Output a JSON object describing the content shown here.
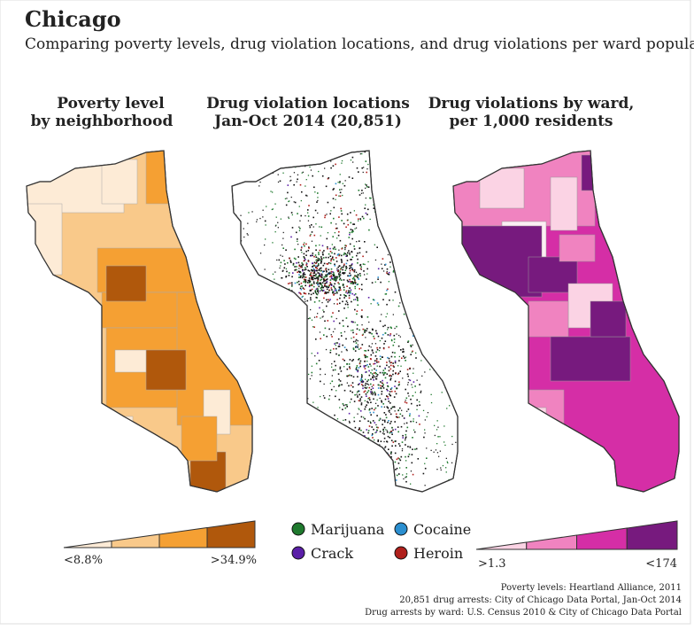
{
  "header": {
    "title": "Chicago",
    "subtitle": "Comparing poverty levels, drug violation locations, and drug violations per ward populations"
  },
  "panels": [
    {
      "title": [
        "Poverty level",
        "by neighborhood"
      ]
    },
    {
      "title": [
        "Drug violation locations",
        "Jan-Oct 2014 (20,851)"
      ]
    },
    {
      "title": [
        "Drug violations by ward,",
        "per 1,000 residents"
      ]
    }
  ],
  "poverty_legend": {
    "low": "<8.8%",
    "high": ">34.9%",
    "colors": [
      "#fdebd6",
      "#f9c98a",
      "#f5a033",
      "#b0580c"
    ]
  },
  "drug_legend": [
    {
      "name": "Marijuana",
      "color": "#1f7a2e"
    },
    {
      "name": "Cocaine",
      "color": "#2b8fd0"
    },
    {
      "name": "Crack",
      "color": "#5b1fa8"
    },
    {
      "name": "Heroin",
      "color": "#b0201c"
    }
  ],
  "ward_legend": {
    "low": ">1.3",
    "high": "<174",
    "colors": [
      "#fbd3e4",
      "#f083c0",
      "#d52ea6",
      "#771a7e"
    ]
  },
  "sources": [
    "Poverty levels: Heartland Alliance, 2011",
    "20,851 drug arrests: City of Chicago Data Portal, Jan-Oct 2014",
    "Drug arrests by ward: U.S. Census 2010 & City of Chicago Data Portal"
  ]
}
